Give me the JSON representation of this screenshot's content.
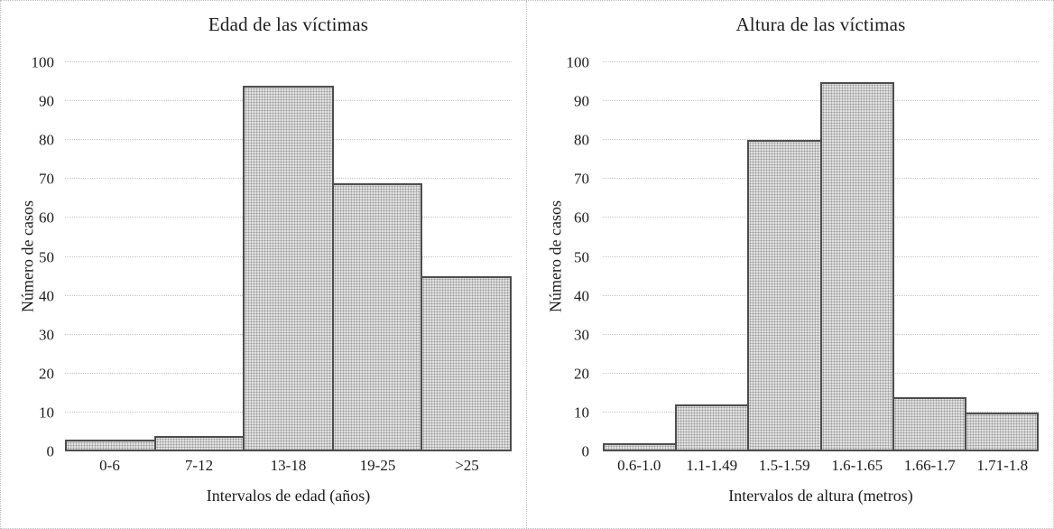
{
  "figure": {
    "background_color": "#ffffff",
    "panel_border_color": "#bdbdbd",
    "gridline_color": "#c6c6c6",
    "text_color": "#1c1c1c"
  },
  "chart_data": [
    {
      "type": "bar",
      "title": "Edad de las víctimas",
      "xlabel": "Intervalos de edad (años)",
      "ylabel": "Número de casos",
      "categories": [
        "0-6",
        "7-12",
        "13-18",
        "19-25",
        ">25"
      ],
      "values": [
        3,
        4,
        94,
        69,
        45
      ],
      "ylim": [
        0,
        100
      ],
      "ytick_step": 10,
      "grid": "horizontal-dotted",
      "legend": "none",
      "bar_fill": "#e0e0e0",
      "bar_dot_color": "#9a9a9a",
      "bar_border": "#4d4d4d"
    },
    {
      "type": "bar",
      "title": "Altura de las víctimas",
      "xlabel": "Intervalos de altura (metros)",
      "ylabel": "Número de casos",
      "categories": [
        "0.6-1.0",
        "1.1-1.49",
        "1.5-1.59",
        "1.6-1.65",
        "1.66-1.7",
        "1.71-1.8"
      ],
      "values": [
        2,
        12,
        80,
        95,
        14,
        10
      ],
      "ylim": [
        0,
        100
      ],
      "ytick_step": 10,
      "grid": "horizontal-dotted",
      "legend": "none",
      "bar_fill": "#e0e0e0",
      "bar_dot_color": "#9a9a9a",
      "bar_border": "#4d4d4d"
    }
  ]
}
